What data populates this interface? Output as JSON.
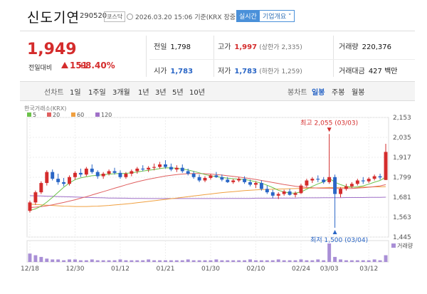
{
  "header": {
    "name": "신도기연",
    "code": "290520",
    "market": "코스닥",
    "datetime": "2026.03.20 15:06 기준(KRX 장중)",
    "realtime_btn": "실시간",
    "company_btn": "기업개요 ˅"
  },
  "quote": {
    "price": "1,949",
    "change_label": "전일대비",
    "change_amount": "151",
    "change_pct": "+8.40%"
  },
  "stats": {
    "prev_label": "전일",
    "prev": "1,798",
    "high_label": "고가",
    "high": "1,997",
    "high_sub": "(상한가 2,335)",
    "volume_label": "거래량",
    "volume": "220,376",
    "open_label": "시가",
    "open": "1,783",
    "low_label": "저가",
    "low": "1,783",
    "low_sub": "(하한가 1,259)",
    "amount_label": "거래대금",
    "amount": "427 백만"
  },
  "tabs": {
    "line": "선차트",
    "d1": "1일",
    "w1": "1주일",
    "m3": "3개월",
    "y1": "1년",
    "y3": "3년",
    "y5": "5년",
    "y10": "10년",
    "candle": "봉차트",
    "daily": "일봉",
    "weekly": "주봉",
    "monthly": "월봉"
  },
  "colors": {
    "up": "#d42c2c",
    "down": "#2a66c6",
    "ma5": "#6cc24a",
    "ma20": "#e06060",
    "ma60": "#f0a040",
    "ma120": "#a070c8"
  },
  "chart_data": {
    "type": "candlestick",
    "source_label": "한국거래소(KRX)",
    "legend": [
      "5",
      "20",
      "60",
      "120"
    ],
    "y_ticks": [
      2153,
      2035,
      1917,
      1799,
      1681,
      1563,
      1445
    ],
    "ylim": [
      1445,
      2153
    ],
    "x_ticks": [
      "12/18",
      "12/30",
      "01/12",
      "01/21",
      "01/30",
      "02/10",
      "02/24",
      "03/03",
      "03/12"
    ],
    "x_tick_index": [
      0,
      8,
      16,
      24,
      32,
      40,
      48,
      53,
      60
    ],
    "volume_label": "거래량",
    "annotations": {
      "high": {
        "text": "최고 2,055 (03/03)",
        "index": 53,
        "value": 2055
      },
      "low": {
        "text": "최저 1,500 (03/04)",
        "index": 54,
        "value": 1500
      }
    },
    "candles": [
      [
        1600,
        1660,
        1590,
        1650
      ],
      [
        1650,
        1720,
        1635,
        1710
      ],
      [
        1710,
        1775,
        1700,
        1765
      ],
      [
        1765,
        1840,
        1750,
        1830
      ],
      [
        1830,
        1845,
        1780,
        1790
      ],
      [
        1790,
        1820,
        1755,
        1770
      ],
      [
        1770,
        1795,
        1745,
        1760
      ],
      [
        1760,
        1810,
        1750,
        1800
      ],
      [
        1800,
        1835,
        1785,
        1825
      ],
      [
        1825,
        1850,
        1800,
        1815
      ],
      [
        1815,
        1860,
        1805,
        1850
      ],
      [
        1850,
        1875,
        1820,
        1830
      ],
      [
        1830,
        1840,
        1790,
        1805
      ],
      [
        1805,
        1830,
        1790,
        1820
      ],
      [
        1820,
        1845,
        1810,
        1835
      ],
      [
        1835,
        1855,
        1815,
        1825
      ],
      [
        1825,
        1840,
        1790,
        1800
      ],
      [
        1800,
        1830,
        1790,
        1820
      ],
      [
        1820,
        1845,
        1805,
        1835
      ],
      [
        1835,
        1860,
        1820,
        1850
      ],
      [
        1850,
        1870,
        1835,
        1845
      ],
      [
        1845,
        1865,
        1830,
        1855
      ],
      [
        1855,
        1880,
        1840,
        1860
      ],
      [
        1860,
        1890,
        1850,
        1875
      ],
      [
        1875,
        1900,
        1850,
        1860
      ],
      [
        1860,
        1880,
        1835,
        1845
      ],
      [
        1845,
        1870,
        1830,
        1855
      ],
      [
        1855,
        1875,
        1825,
        1835
      ],
      [
        1835,
        1850,
        1810,
        1820
      ],
      [
        1820,
        1835,
        1790,
        1800
      ],
      [
        1800,
        1815,
        1770,
        1780
      ],
      [
        1780,
        1805,
        1770,
        1795
      ],
      [
        1795,
        1820,
        1785,
        1810
      ],
      [
        1810,
        1830,
        1795,
        1800
      ],
      [
        1800,
        1815,
        1775,
        1785
      ],
      [
        1785,
        1800,
        1765,
        1770
      ],
      [
        1770,
        1790,
        1760,
        1780
      ],
      [
        1780,
        1800,
        1770,
        1790
      ],
      [
        1790,
        1805,
        1760,
        1770
      ],
      [
        1770,
        1785,
        1745,
        1755
      ],
      [
        1755,
        1775,
        1735,
        1765
      ],
      [
        1765,
        1780,
        1720,
        1730
      ],
      [
        1730,
        1750,
        1700,
        1710
      ],
      [
        1710,
        1725,
        1675,
        1690
      ],
      [
        1690,
        1710,
        1670,
        1700
      ],
      [
        1700,
        1725,
        1690,
        1715
      ],
      [
        1715,
        1730,
        1690,
        1695
      ],
      [
        1695,
        1715,
        1680,
        1705
      ],
      [
        1705,
        1760,
        1700,
        1750
      ],
      [
        1750,
        1790,
        1740,
        1780
      ],
      [
        1780,
        1800,
        1765,
        1790
      ],
      [
        1790,
        1810,
        1770,
        1785
      ],
      [
        1785,
        1800,
        1760,
        1770
      ],
      [
        1770,
        2055,
        1760,
        1800
      ],
      [
        1800,
        1815,
        1500,
        1700
      ],
      [
        1700,
        1740,
        1680,
        1730
      ],
      [
        1730,
        1760,
        1720,
        1745
      ],
      [
        1745,
        1770,
        1735,
        1760
      ],
      [
        1760,
        1790,
        1750,
        1780
      ],
      [
        1780,
        1800,
        1760,
        1775
      ],
      [
        1775,
        1800,
        1765,
        1790
      ],
      [
        1790,
        1815,
        1780,
        1805
      ],
      [
        1805,
        1820,
        1785,
        1798
      ],
      [
        1783,
        1997,
        1783,
        1949
      ]
    ],
    "volumes": [
      10,
      8,
      6,
      4,
      3,
      3,
      2,
      3,
      3,
      2,
      2,
      3,
      2,
      2,
      2,
      2,
      3,
      2,
      2,
      2,
      2,
      3,
      2,
      2,
      2,
      2,
      2,
      2,
      3,
      2,
      2,
      2,
      2,
      3,
      2,
      2,
      2,
      2,
      2,
      3,
      2,
      2,
      2,
      2,
      3,
      2,
      2,
      2,
      3,
      2,
      2,
      3,
      2,
      22,
      6,
      3,
      2,
      2,
      2,
      2,
      2,
      3,
      2,
      8
    ],
    "ma": {
      "ma5": [
        1602,
        1612,
        1628,
        1652,
        1680,
        1710,
        1740,
        1765,
        1785,
        1795,
        1802,
        1808,
        1811,
        1814,
        1817,
        1820,
        1821,
        1822,
        1825,
        1830,
        1836,
        1840,
        1845,
        1850,
        1855,
        1854,
        1852,
        1848,
        1842,
        1834,
        1825,
        1815,
        1808,
        1803,
        1798,
        1793,
        1790,
        1788,
        1786,
        1780,
        1772,
        1764,
        1752,
        1738,
        1722,
        1712,
        1706,
        1705,
        1712,
        1728,
        1745,
        1760,
        1772,
        1792,
        1770,
        1755,
        1745,
        1740,
        1742,
        1748,
        1758,
        1770,
        1780,
        1800
      ],
      "ma20": [
        1620,
        1622,
        1625,
        1630,
        1636,
        1643,
        1650,
        1658,
        1666,
        1675,
        1684,
        1694,
        1704,
        1714,
        1724,
        1734,
        1744,
        1754,
        1763,
        1772,
        1780,
        1787,
        1794,
        1800,
        1806,
        1811,
        1815,
        1818,
        1820,
        1821,
        1821,
        1820,
        1818,
        1815,
        1812,
        1808,
        1804,
        1800,
        1796,
        1791,
        1786,
        1780,
        1774,
        1768,
        1762,
        1756,
        1751,
        1746,
        1742,
        1739,
        1737,
        1735,
        1734,
        1735,
        1733,
        1732,
        1732,
        1733,
        1735,
        1737,
        1740,
        1744,
        1748,
        1755
      ],
      "ma60": [
        1640,
        1638,
        1636,
        1634,
        1632,
        1630,
        1628,
        1627,
        1626,
        1626,
        1626,
        1627,
        1628,
        1630,
        1632,
        1635,
        1638,
        1641,
        1644,
        1648,
        1652,
        1656,
        1660,
        1664,
        1668,
        1672,
        1676,
        1680,
        1684,
        1688,
        1692,
        1696,
        1700,
        1704,
        1708,
        1711,
        1714,
        1717,
        1720,
        1722,
        1724,
        1726,
        1727,
        1728,
        1729,
        1730,
        1731,
        1732,
        1733,
        1734,
        1735,
        1736,
        1737,
        1738,
        1738,
        1739,
        1739,
        1740,
        1740,
        1741,
        1741,
        1742,
        1742,
        1743
      ],
      "ma120": [
        1690,
        1689,
        1688,
        1687,
        1686,
        1685,
        1684,
        1683,
        1682,
        1681,
        1680,
        1679,
        1678,
        1677,
        1676,
        1676,
        1675,
        1675,
        1674,
        1674,
        1674,
        1673,
        1673,
        1673,
        1673,
        1673,
        1673,
        1673,
        1673,
        1673,
        1673,
        1673,
        1673,
        1673,
        1673,
        1674,
        1674,
        1674,
        1674,
        1674,
        1675,
        1675,
        1675,
        1675,
        1676,
        1676,
        1676,
        1676,
        1677,
        1677,
        1677,
        1677,
        1678,
        1678,
        1678,
        1678,
        1679,
        1679,
        1679,
        1679,
        1680,
        1680,
        1680,
        1681
      ]
    }
  }
}
